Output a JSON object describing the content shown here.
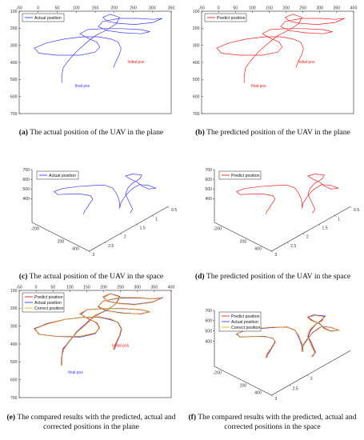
{
  "colors": {
    "actual": "#3c3cf0",
    "predict": "#ee2020",
    "correct": "#f5b000",
    "axis": "#262626",
    "tick_text": "#333333"
  },
  "captions": [
    {
      "letter": "(a)",
      "text": " The actual position of the UAV in the plane"
    },
    {
      "letter": "(b)",
      "text": " The predicted position of the UAV in the plane"
    },
    {
      "letter": "(c)",
      "text": " The actual position of the UAV in the space"
    },
    {
      "letter": "(d)",
      "text": " The predicted position of the UAV in the space"
    },
    {
      "letter": "(e)",
      "text": " The compared results with the predicted, actual and corrected positions in the plane"
    },
    {
      "letter": "(f)",
      "text": " The compared results with the predicted, actual and corrected positions in the space"
    }
  ],
  "chart_data": [
    {
      "id": "a",
      "type": "line",
      "view": "plane",
      "xticks": [
        -50,
        0,
        50,
        100,
        150,
        200,
        250,
        300,
        350
      ],
      "yticks": [
        100,
        200,
        300,
        400,
        500,
        600,
        700
      ],
      "xlim": [
        -50,
        350
      ],
      "ylim": [
        100,
        700
      ],
      "y_reversed": true,
      "legend": [
        "Actual position"
      ],
      "series": [
        {
          "name": "Actual position",
          "color_key": "actual"
        }
      ],
      "annotations": [
        {
          "text": "Initial pos",
          "x": 235,
          "y": 405,
          "color_key": "predict"
        },
        {
          "text": "final pos",
          "x": 97,
          "y": 545,
          "color_key": "actual"
        }
      ]
    },
    {
      "id": "b",
      "type": "line",
      "view": "plane",
      "xticks": [
        -50,
        0,
        50,
        100,
        150,
        200,
        250,
        300,
        350,
        400
      ],
      "yticks": [
        100,
        200,
        300,
        400,
        500,
        600,
        700
      ],
      "xlim": [
        -50,
        400
      ],
      "ylim": [
        100,
        700
      ],
      "y_reversed": true,
      "legend": [
        "Predict position"
      ],
      "series": [
        {
          "name": "Predict position",
          "color_key": "predict"
        }
      ],
      "annotations": [
        {
          "text": "Initial pos",
          "x": 235,
          "y": 405,
          "color_key": "predict"
        },
        {
          "text": "final pos",
          "x": 97,
          "y": 545,
          "color_key": "predict"
        }
      ]
    },
    {
      "id": "c",
      "type": "line",
      "view": "space",
      "zticks": [
        400,
        500,
        600,
        700
      ],
      "yticks": [
        -200,
        200,
        400
      ],
      "xticks": [
        3,
        2.5,
        2,
        1.5,
        1,
        0.5
      ],
      "legend": [
        "Actual position"
      ],
      "series": [
        {
          "name": "Actual position",
          "color_key": "actual"
        }
      ]
    },
    {
      "id": "d",
      "type": "line",
      "view": "space",
      "zticks": [
        400,
        500,
        600,
        700
      ],
      "yticks": [
        -200,
        200,
        400
      ],
      "xticks": [
        3,
        2.5,
        2,
        1.5,
        1,
        0.5
      ],
      "legend": [
        "Predict position"
      ],
      "series": [
        {
          "name": "Predict position",
          "color_key": "predict"
        }
      ]
    },
    {
      "id": "e",
      "type": "line",
      "view": "plane",
      "xticks": [
        -50,
        0,
        50,
        100,
        150,
        200,
        250,
        300,
        350,
        400
      ],
      "yticks": [
        100,
        200,
        300,
        400,
        500,
        600,
        700
      ],
      "xlim": [
        -50,
        400
      ],
      "ylim": [
        100,
        700
      ],
      "y_reversed": true,
      "legend": [
        "Predict position",
        "Actual position",
        "Correct position"
      ],
      "series": [
        {
          "name": "Predict position",
          "color_key": "predict"
        },
        {
          "name": "Actual position",
          "color_key": "actual"
        },
        {
          "name": "Correct position",
          "color_key": "correct"
        }
      ],
      "annotations": [
        {
          "text": "Initial pos",
          "x": 225,
          "y": 415,
          "color_key": "predict"
        },
        {
          "text": "final pos",
          "x": 95,
          "y": 565,
          "color_key": "actual"
        }
      ]
    },
    {
      "id": "f",
      "type": "line",
      "view": "space",
      "zticks": [
        400,
        500,
        600,
        700
      ],
      "yticks": [
        -200,
        200,
        400
      ],
      "xticks": [
        3,
        2.5,
        2
      ],
      "legend": [
        "Predict position",
        "Actual position",
        "Correct position"
      ],
      "series": [
        {
          "name": "Predict position",
          "color_key": "predict"
        },
        {
          "name": "Actual position",
          "color_key": "actual"
        },
        {
          "name": "Correct position",
          "color_key": "correct"
        }
      ]
    }
  ]
}
